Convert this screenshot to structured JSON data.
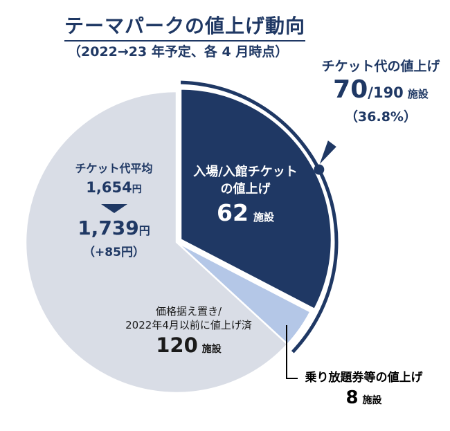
{
  "title": "テーマパークの値上げ動向",
  "subtitle": "（2022→23 年予定、各 4 月時点）",
  "colors": {
    "navy": "#1f3864",
    "light_blue": "#b4c7e7",
    "gray": "#d9dde6",
    "black": "#000000",
    "white": "#ffffff"
  },
  "chart_data": {
    "type": "pie",
    "title": "テーマパークの値上げ動向（2022→23 年予定、各 4 月時点）",
    "total": 190,
    "start_angle_deg": 0,
    "clockwise": true,
    "legend_position": "none",
    "slices": [
      {
        "label": "入場/入館チケットの値上げ",
        "value": 62,
        "unit": "施設",
        "color": "#1f3864",
        "exploded": true
      },
      {
        "label": "乗り放題券等の値上げ",
        "value": 8,
        "unit": "施設",
        "color": "#b4c7e7",
        "exploded": false
      },
      {
        "label": "価格据え置き/2022年4月以前に値上げ済",
        "value": 120,
        "unit": "施設",
        "color": "#d9dde6",
        "exploded": false
      }
    ],
    "highlight_arc": {
      "label": "チケット代の値上げ",
      "value": 70,
      "of_total": 190,
      "percent": "36.8%",
      "covers_slices": [
        0,
        1
      ]
    },
    "extra_stats": {
      "avg_ticket_before_yen": "1,654",
      "avg_ticket_after_yen": "1,739",
      "avg_ticket_diff_yen": "+85"
    }
  },
  "annotations": {
    "callout_top_right": {
      "line1": "チケット代の値上げ",
      "big": "70",
      "of": "/190",
      "unit": "施設",
      "percent": "（36.8%）"
    },
    "navy_label": {
      "line1": "入場/入館チケット",
      "line2": "の値上げ",
      "big": "62",
      "unit": "施設"
    },
    "avg_price": {
      "heading": "チケット代平均",
      "before": "1,654",
      "before_unit": "円",
      "after": "1,739",
      "after_unit": "円",
      "diff": "（+85円）"
    },
    "gray_label": {
      "line1": "価格据え置き/",
      "line2": "2022年4月以前に値上げ済",
      "big": "120",
      "unit": "施設"
    },
    "blue_label": {
      "line1": "乗り放題券等の値上げ",
      "big": "8",
      "unit": "施設"
    }
  }
}
